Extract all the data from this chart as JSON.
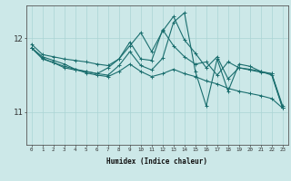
{
  "xlabel": "Humidex (Indice chaleur)",
  "xlim": [
    -0.5,
    23.5
  ],
  "ylim": [
    10.55,
    12.45
  ],
  "yticks": [
    11,
    12
  ],
  "xticks": [
    0,
    1,
    2,
    3,
    4,
    5,
    6,
    7,
    8,
    9,
    10,
    11,
    12,
    13,
    14,
    15,
    16,
    17,
    18,
    19,
    20,
    21,
    22,
    23
  ],
  "bg_color": "#cce8e8",
  "line_color": "#1a6e6e",
  "grid_color": "#aad4d4",
  "line1_x": [
    0,
    1,
    2,
    3,
    4,
    5,
    6,
    7,
    8,
    9,
    10,
    11,
    12,
    13,
    14,
    15,
    16,
    17,
    18,
    19,
    20,
    21,
    22,
    23
  ],
  "line1_y": [
    11.92,
    11.78,
    11.75,
    11.72,
    11.7,
    11.68,
    11.65,
    11.63,
    11.72,
    11.9,
    12.08,
    11.82,
    12.1,
    12.3,
    11.98,
    11.8,
    11.6,
    11.75,
    11.45,
    11.6,
    11.58,
    11.55,
    11.52,
    11.05
  ],
  "line2_x": [
    0,
    1,
    2,
    3,
    4,
    5,
    6,
    7,
    8,
    9,
    10,
    11,
    12,
    13,
    14,
    15,
    16,
    17,
    18,
    19,
    20,
    21,
    22,
    23
  ],
  "line2_y": [
    11.87,
    11.72,
    11.67,
    11.6,
    11.57,
    11.55,
    11.52,
    11.6,
    11.72,
    11.95,
    11.72,
    11.7,
    12.12,
    11.9,
    11.75,
    11.65,
    11.68,
    11.5,
    11.68,
    11.6,
    11.57,
    11.54,
    11.52,
    11.08
  ],
  "line3_x": [
    0,
    1,
    2,
    3,
    4,
    5,
    6,
    7,
    8,
    9,
    10,
    11,
    12,
    13,
    14,
    15,
    16,
    17,
    18,
    19,
    20,
    21,
    22,
    23
  ],
  "line3_y": [
    11.87,
    11.73,
    11.67,
    11.62,
    11.58,
    11.55,
    11.52,
    11.5,
    11.63,
    11.82,
    11.63,
    11.57,
    11.73,
    12.22,
    12.35,
    11.55,
    11.08,
    11.72,
    11.28,
    11.65,
    11.62,
    11.55,
    11.5,
    11.05
  ],
  "line4_x": [
    0,
    1,
    2,
    3,
    4,
    5,
    6,
    7,
    8,
    9,
    10,
    11,
    12,
    13,
    14,
    15,
    16,
    17,
    18,
    19,
    20,
    21,
    22,
    23
  ],
  "line4_y": [
    11.87,
    11.75,
    11.7,
    11.65,
    11.58,
    11.53,
    11.5,
    11.48,
    11.55,
    11.65,
    11.55,
    11.48,
    11.52,
    11.58,
    11.52,
    11.48,
    11.42,
    11.38,
    11.32,
    11.28,
    11.25,
    11.22,
    11.18,
    11.05
  ]
}
